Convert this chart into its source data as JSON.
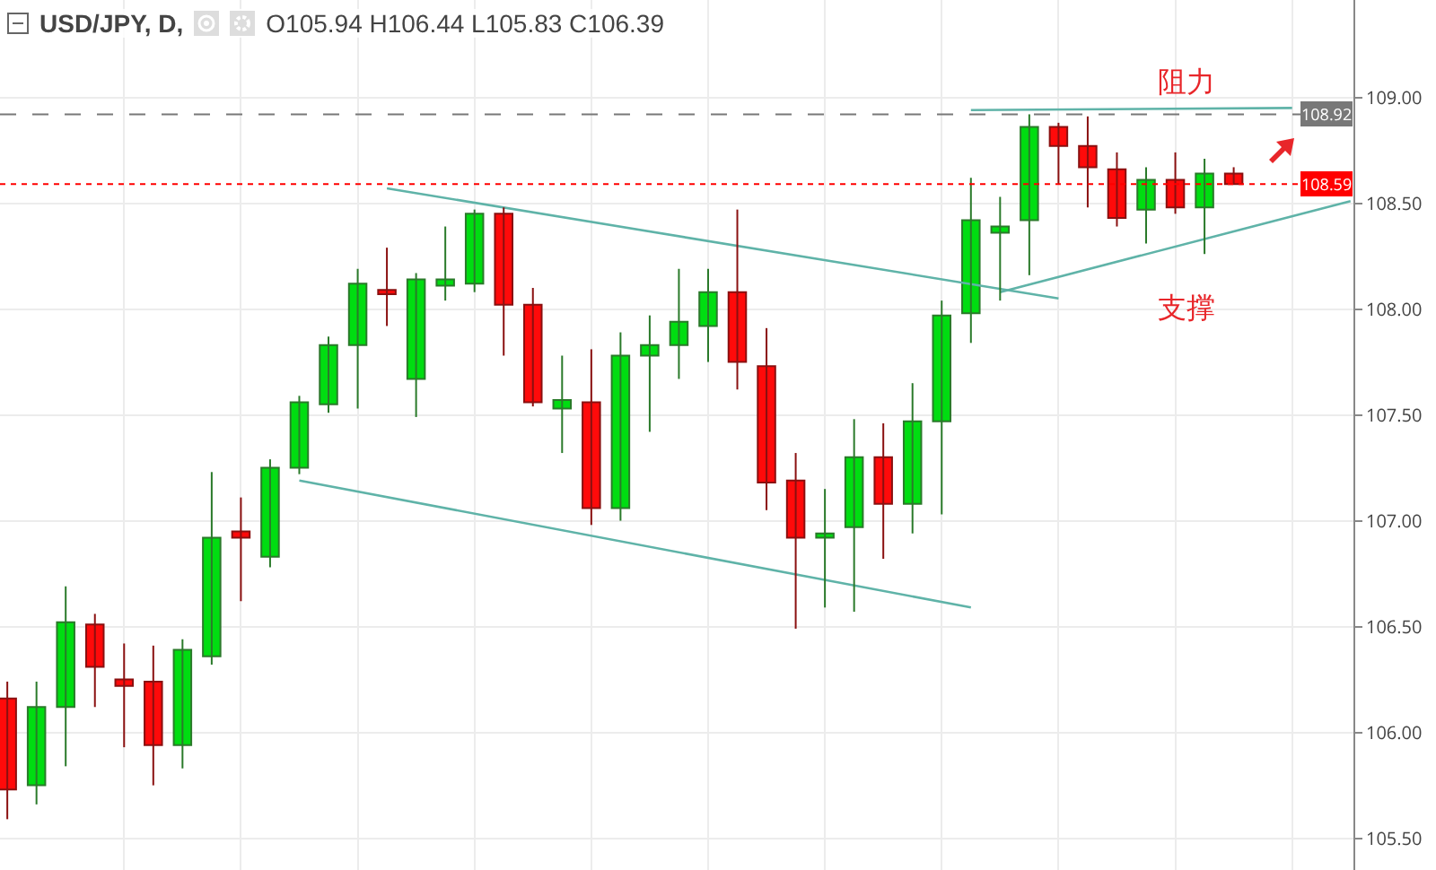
{
  "chart_data": {
    "type": "candlestick",
    "title": "USD/JPY, D,",
    "subtitle": "O105.94 H106.44 L105.83 C106.39",
    "categories": [
      null,
      null,
      null,
      null,
      null,
      null,
      null,
      null,
      null,
      null,
      null,
      null,
      null,
      null,
      null,
      null,
      null,
      null,
      null,
      null,
      null,
      null,
      null,
      null,
      null,
      null,
      null,
      null,
      null,
      null,
      null,
      null,
      null,
      null,
      null,
      null,
      null,
      null,
      null,
      null,
      null,
      null,
      null,
      null,
      null,
      null,
      null
    ],
    "ohlc": [
      [
        106.16,
        106.24,
        105.59,
        105.73
      ],
      [
        105.75,
        106.24,
        105.66,
        106.12
      ],
      [
        106.12,
        106.69,
        105.84,
        106.52
      ],
      [
        106.51,
        106.56,
        106.12,
        106.31
      ],
      [
        106.25,
        106.42,
        105.93,
        106.22
      ],
      [
        106.24,
        106.41,
        105.75,
        105.94
      ],
      [
        105.94,
        106.44,
        105.83,
        106.39
      ],
      [
        106.36,
        107.23,
        106.32,
        106.92
      ],
      [
        106.95,
        107.11,
        106.62,
        106.92
      ],
      [
        106.83,
        107.29,
        106.78,
        107.25
      ],
      [
        107.25,
        107.59,
        107.22,
        107.56
      ],
      [
        107.55,
        107.87,
        107.51,
        107.83
      ],
      [
        107.83,
        108.19,
        107.53,
        108.12
      ],
      [
        108.09,
        108.29,
        107.92,
        108.07
      ],
      [
        107.67,
        108.17,
        107.49,
        108.14
      ],
      [
        108.11,
        108.39,
        108.04,
        108.14
      ],
      [
        108.12,
        108.47,
        108.08,
        108.45
      ],
      [
        108.45,
        108.48,
        107.78,
        108.02
      ],
      [
        108.02,
        108.1,
        107.54,
        107.56
      ],
      [
        107.53,
        107.78,
        107.32,
        107.57
      ],
      [
        107.56,
        107.81,
        106.98,
        107.06
      ],
      [
        107.06,
        107.89,
        107.0,
        107.78
      ],
      [
        107.78,
        107.97,
        107.42,
        107.83
      ],
      [
        107.83,
        108.19,
        107.67,
        107.94
      ],
      [
        107.92,
        108.19,
        107.75,
        108.08
      ],
      [
        108.08,
        108.47,
        107.62,
        107.75
      ],
      [
        107.73,
        107.91,
        107.05,
        107.18
      ],
      [
        107.19,
        107.32,
        106.49,
        106.92
      ],
      [
        106.92,
        107.15,
        106.59,
        106.94
      ],
      [
        106.97,
        107.48,
        106.57,
        107.3
      ],
      [
        107.3,
        107.46,
        106.82,
        107.08
      ],
      [
        107.08,
        107.65,
        106.94,
        107.47
      ],
      [
        107.47,
        108.04,
        107.03,
        107.97
      ],
      [
        107.98,
        108.62,
        107.84,
        108.42
      ],
      [
        108.36,
        108.53,
        108.04,
        108.39
      ],
      [
        108.42,
        108.92,
        108.16,
        108.86
      ],
      [
        108.86,
        108.88,
        108.59,
        108.77
      ],
      [
        108.77,
        108.91,
        108.48,
        108.67
      ],
      [
        108.66,
        108.74,
        108.39,
        108.43
      ],
      [
        108.47,
        108.67,
        108.31,
        108.61
      ],
      [
        108.61,
        108.74,
        108.45,
        108.48
      ],
      [
        108.48,
        108.71,
        108.26,
        108.64
      ],
      [
        108.64,
        108.67,
        108.59,
        108.59
      ],
      null,
      null,
      null,
      null
    ],
    "series": [
      {
        "type": "line",
        "color": "#5fb3a8",
        "values": [
          null,
          null,
          null,
          null,
          null,
          null,
          null,
          null,
          null,
          null,
          null,
          null,
          null,
          108.57,
          null,
          null,
          null,
          null,
          null,
          null,
          null,
          null,
          null,
          null,
          null,
          null,
          null,
          null,
          null,
          null,
          null,
          null,
          null,
          null,
          null,
          null,
          108.05,
          null,
          null,
          null,
          null,
          null,
          null,
          null,
          null,
          null,
          null
        ]
      },
      {
        "type": "line",
        "color": "#5fb3a8",
        "values": [
          null,
          null,
          null,
          null,
          null,
          null,
          null,
          null,
          null,
          null,
          107.19,
          null,
          null,
          null,
          null,
          null,
          null,
          null,
          null,
          null,
          null,
          null,
          null,
          null,
          null,
          null,
          null,
          null,
          null,
          null,
          null,
          null,
          null,
          106.59,
          null,
          null,
          null,
          null,
          null,
          null,
          null,
          null,
          null,
          null,
          null,
          null,
          null
        ]
      },
      {
        "type": "line",
        "color": "#5fb3a8",
        "values": [
          null,
          null,
          null,
          null,
          null,
          null,
          null,
          null,
          null,
          null,
          null,
          null,
          null,
          null,
          null,
          null,
          null,
          null,
          null,
          null,
          null,
          null,
          null,
          null,
          null,
          null,
          null,
          null,
          null,
          null,
          null,
          null,
          null,
          108.94,
          null,
          null,
          null,
          null,
          null,
          null,
          null,
          null,
          null,
          null,
          108.95,
          null,
          null
        ]
      },
      {
        "type": "line",
        "color": "#5fb3a8",
        "values": [
          null,
          null,
          null,
          null,
          null,
          null,
          null,
          null,
          null,
          null,
          null,
          null,
          null,
          null,
          null,
          null,
          null,
          null,
          null,
          null,
          null,
          null,
          null,
          null,
          null,
          null,
          null,
          null,
          null,
          null,
          null,
          null,
          null,
          null,
          108.08,
          null,
          null,
          null,
          null,
          null,
          null,
          null,
          null,
          null,
          null,
          null,
          108.51
        ]
      }
    ],
    "ylim": [
      105.35,
      109.46
    ],
    "yticks": [
      {
        "value": 105.5,
        "label": "105.50"
      },
      {
        "value": 106,
        "label": "106.00"
      },
      {
        "value": 106.5,
        "label": "106.50"
      },
      {
        "value": 107,
        "label": "107.00"
      },
      {
        "value": 107.5,
        "label": "107.50"
      },
      {
        "value": 108,
        "label": "108.00"
      },
      {
        "value": 108.5,
        "label": "108.50"
      },
      {
        "value": 109,
        "label": "109.00"
      }
    ],
    "grid": true,
    "tick_labels": "y",
    "ref_lines": [
      {
        "axis": "y",
        "value": 108.92,
        "label": "108.92",
        "color": "#787878",
        "line_style": "dashed"
      },
      {
        "axis": "y",
        "value": 108.59,
        "label": "108.59",
        "color": "#ff0000",
        "line_style": "dotted"
      }
    ],
    "annotations": [
      "阻力",
      "支撑"
    ]
  }
}
